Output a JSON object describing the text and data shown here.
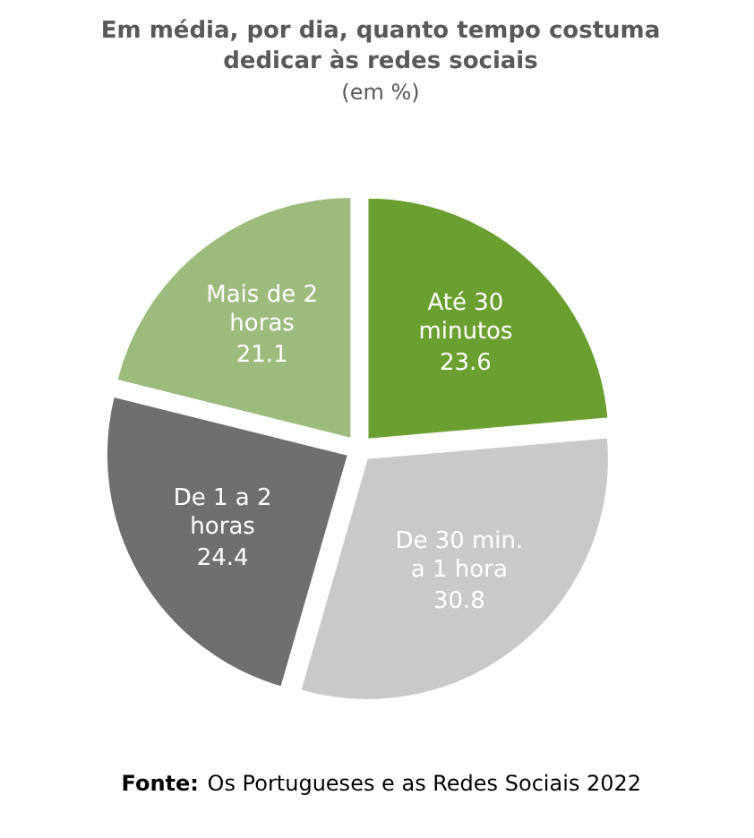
{
  "chart_data": {
    "type": "pie",
    "title": "Em média, por dia, quanto tempo costuma dedicar às redes sociais",
    "subtitle": "(em %)",
    "categories": [
      "Até 30 minutos",
      "De 30 min. a 1 hora",
      "De 1 a 2 horas",
      "Mais de 2 horas"
    ],
    "values": [
      23.6,
      30.8,
      24.4,
      21.1
    ],
    "colors": [
      "#6b9f2f",
      "#c9c9c9",
      "#6f6f6f",
      "#9dbb7d"
    ],
    "data_labels": true,
    "legend": false,
    "annotations": [
      "Fonte: Os Portugueses e as Redes Sociais 2022"
    ]
  }
}
